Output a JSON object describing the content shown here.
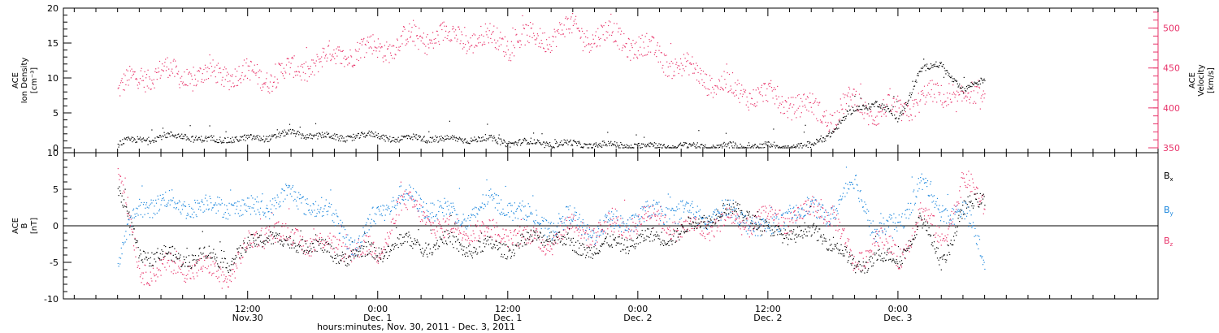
{
  "chart_data": [
    {
      "type": "scatter",
      "panel": "top",
      "ylabel_lines": [
        "ACE",
        "Ion Density",
        "[cm⁻³]"
      ],
      "y2label_lines": [
        "ACE",
        "Velocity",
        "[km/s]"
      ],
      "ylim": [
        0,
        20
      ],
      "y2lim": [
        350,
        525
      ],
      "yticks": [
        "0",
        "5",
        "10",
        "15",
        "20"
      ],
      "y2ticks": [
        "350",
        "400",
        "450",
        "500"
      ],
      "colors": {
        "density": "#000000",
        "velocity": "#e8336a"
      },
      "series": [
        {
          "name": "",
          "role": "density",
          "x_hours": [
            0,
            2,
            4,
            6,
            8,
            10,
            12,
            14,
            16,
            18,
            20,
            22,
            24,
            26,
            28,
            30,
            32,
            34,
            36,
            38,
            40,
            42,
            44,
            46,
            48,
            50,
            52,
            54,
            56,
            58,
            60,
            62,
            64,
            66,
            68,
            70,
            72,
            74,
            76,
            78,
            80
          ],
          "values": [
            0.5,
            1.2,
            1.5,
            1.8,
            1.0,
            1.3,
            1.2,
            1.6,
            2.0,
            1.8,
            1.4,
            1.6,
            1.8,
            1.2,
            1.5,
            1.1,
            1.3,
            1.2,
            0.8,
            0.7,
            0.6,
            0.5,
            0.4,
            0.3,
            0.3,
            0.25,
            0.2,
            0.2,
            0.2,
            0.2,
            0.2,
            0.2,
            0.2,
            2.5,
            5.5,
            6.5,
            4.0,
            11.0,
            12.0,
            8.0,
            10.0
          ]
        },
        {
          "name": "",
          "role": "velocity",
          "x_hours": [
            0,
            2,
            4,
            6,
            8,
            10,
            12,
            14,
            16,
            18,
            20,
            22,
            24,
            26,
            28,
            30,
            32,
            34,
            36,
            38,
            40,
            42,
            44,
            46,
            48,
            50,
            52,
            54,
            56,
            58,
            60,
            62,
            64,
            66,
            68,
            70,
            72,
            74,
            76,
            78,
            80
          ],
          "values": [
            420,
            440,
            445,
            440,
            438,
            445,
            440,
            440,
            445,
            455,
            465,
            472,
            475,
            482,
            488,
            490,
            488,
            486,
            484,
            485,
            492,
            498,
            490,
            490,
            476,
            466,
            450,
            440,
            425,
            420,
            413,
            408,
            398,
            390,
            410,
            392,
            397,
            408,
            418,
            410,
            414
          ]
        }
      ]
    },
    {
      "type": "scatter",
      "panel": "bottom",
      "ylabel_lines": [
        "ACE",
        "B",
        "[nT]"
      ],
      "ylim": [
        -10,
        10
      ],
      "yticks": [
        "-10",
        "-5",
        "0",
        "5",
        "10"
      ],
      "colors": {
        "Bx": "#000000",
        "By": "#1a86dd",
        "Bz": "#e8336a"
      },
      "series": [
        {
          "name": "Bx",
          "x_hours": [
            0,
            2,
            4,
            6,
            8,
            10,
            12,
            14,
            16,
            18,
            20,
            22,
            24,
            26,
            28,
            30,
            32,
            34,
            36,
            38,
            40,
            42,
            44,
            46,
            48,
            50,
            52,
            54,
            56,
            58,
            60,
            62,
            64,
            66,
            68,
            70,
            72,
            74,
            76,
            78,
            80
          ],
          "values": [
            5,
            -4,
            -4,
            -4.5,
            -4,
            -5,
            -3,
            -1,
            -3,
            -2,
            -4.5,
            -3.5,
            -4,
            -2,
            -3,
            -2,
            -3,
            -3,
            -3,
            -2,
            -1,
            -3,
            -3,
            -2.5,
            -2,
            -1.5,
            -1,
            1,
            2,
            2,
            -1,
            -1,
            -1,
            -2,
            -6,
            -4,
            -5,
            1,
            -5,
            2,
            4
          ]
        },
        {
          "name": "By",
          "x_hours": [
            0,
            2,
            4,
            6,
            8,
            10,
            12,
            14,
            16,
            18,
            20,
            22,
            24,
            26,
            28,
            30,
            32,
            34,
            36,
            38,
            40,
            42,
            44,
            46,
            48,
            50,
            52,
            54,
            56,
            58,
            60,
            62,
            64,
            66,
            68,
            70,
            72,
            74,
            76,
            78,
            80
          ],
          "values": [
            -5,
            3,
            3,
            3,
            2.5,
            3,
            2,
            3,
            4,
            3,
            1,
            -3,
            2,
            4,
            3,
            2,
            1,
            3,
            3,
            1,
            0,
            1,
            -1,
            0.5,
            1,
            2,
            2,
            1,
            2,
            1,
            -1,
            2,
            2,
            2,
            6,
            -1,
            0,
            6,
            2,
            2,
            -4.5
          ]
        },
        {
          "name": "Bz",
          "x_hours": [
            0,
            2,
            4,
            6,
            8,
            10,
            12,
            14,
            16,
            18,
            20,
            22,
            24,
            26,
            28,
            30,
            32,
            34,
            36,
            38,
            40,
            42,
            44,
            46,
            48,
            50,
            52,
            54,
            56,
            58,
            60,
            62,
            64,
            66,
            68,
            70,
            72,
            74,
            76,
            78,
            80
          ],
          "values": [
            8,
            -6,
            -6,
            -5.5,
            -6,
            -7,
            -3,
            0,
            -2,
            -2,
            -3,
            -3,
            -4,
            3,
            2,
            -1,
            0,
            -1,
            -1,
            -2,
            -2,
            0,
            -1,
            0,
            0.5,
            1.5,
            -1,
            0,
            0.5,
            0.5,
            1,
            1,
            2,
            2,
            -6,
            -1,
            -5,
            2,
            -2,
            6,
            3
          ]
        }
      ]
    }
  ],
  "x_axis": {
    "range_hours": [
      -5,
      96
    ],
    "ticks": [
      {
        "hour": 12,
        "time": "12:00",
        "day": "Nov.30"
      },
      {
        "hour": 24,
        "time": "0:00",
        "day": "Dec. 1"
      },
      {
        "hour": 36,
        "time": "12:00",
        "day": "Dec. 1"
      },
      {
        "hour": 48,
        "time": "0:00",
        "day": "Dec. 2"
      },
      {
        "hour": 60,
        "time": "12:00",
        "day": "Dec. 2"
      },
      {
        "hour": 72,
        "time": "0:00",
        "day": "Dec. 3"
      }
    ],
    "xlabel": "hours:minutes, Nov. 30, 2011 - Dec. 3, 2011"
  },
  "legend": {
    "bx": {
      "base": "B",
      "sub": "x"
    },
    "by": {
      "base": "B",
      "sub": "y"
    },
    "bz": {
      "base": "B",
      "sub": "z"
    }
  }
}
